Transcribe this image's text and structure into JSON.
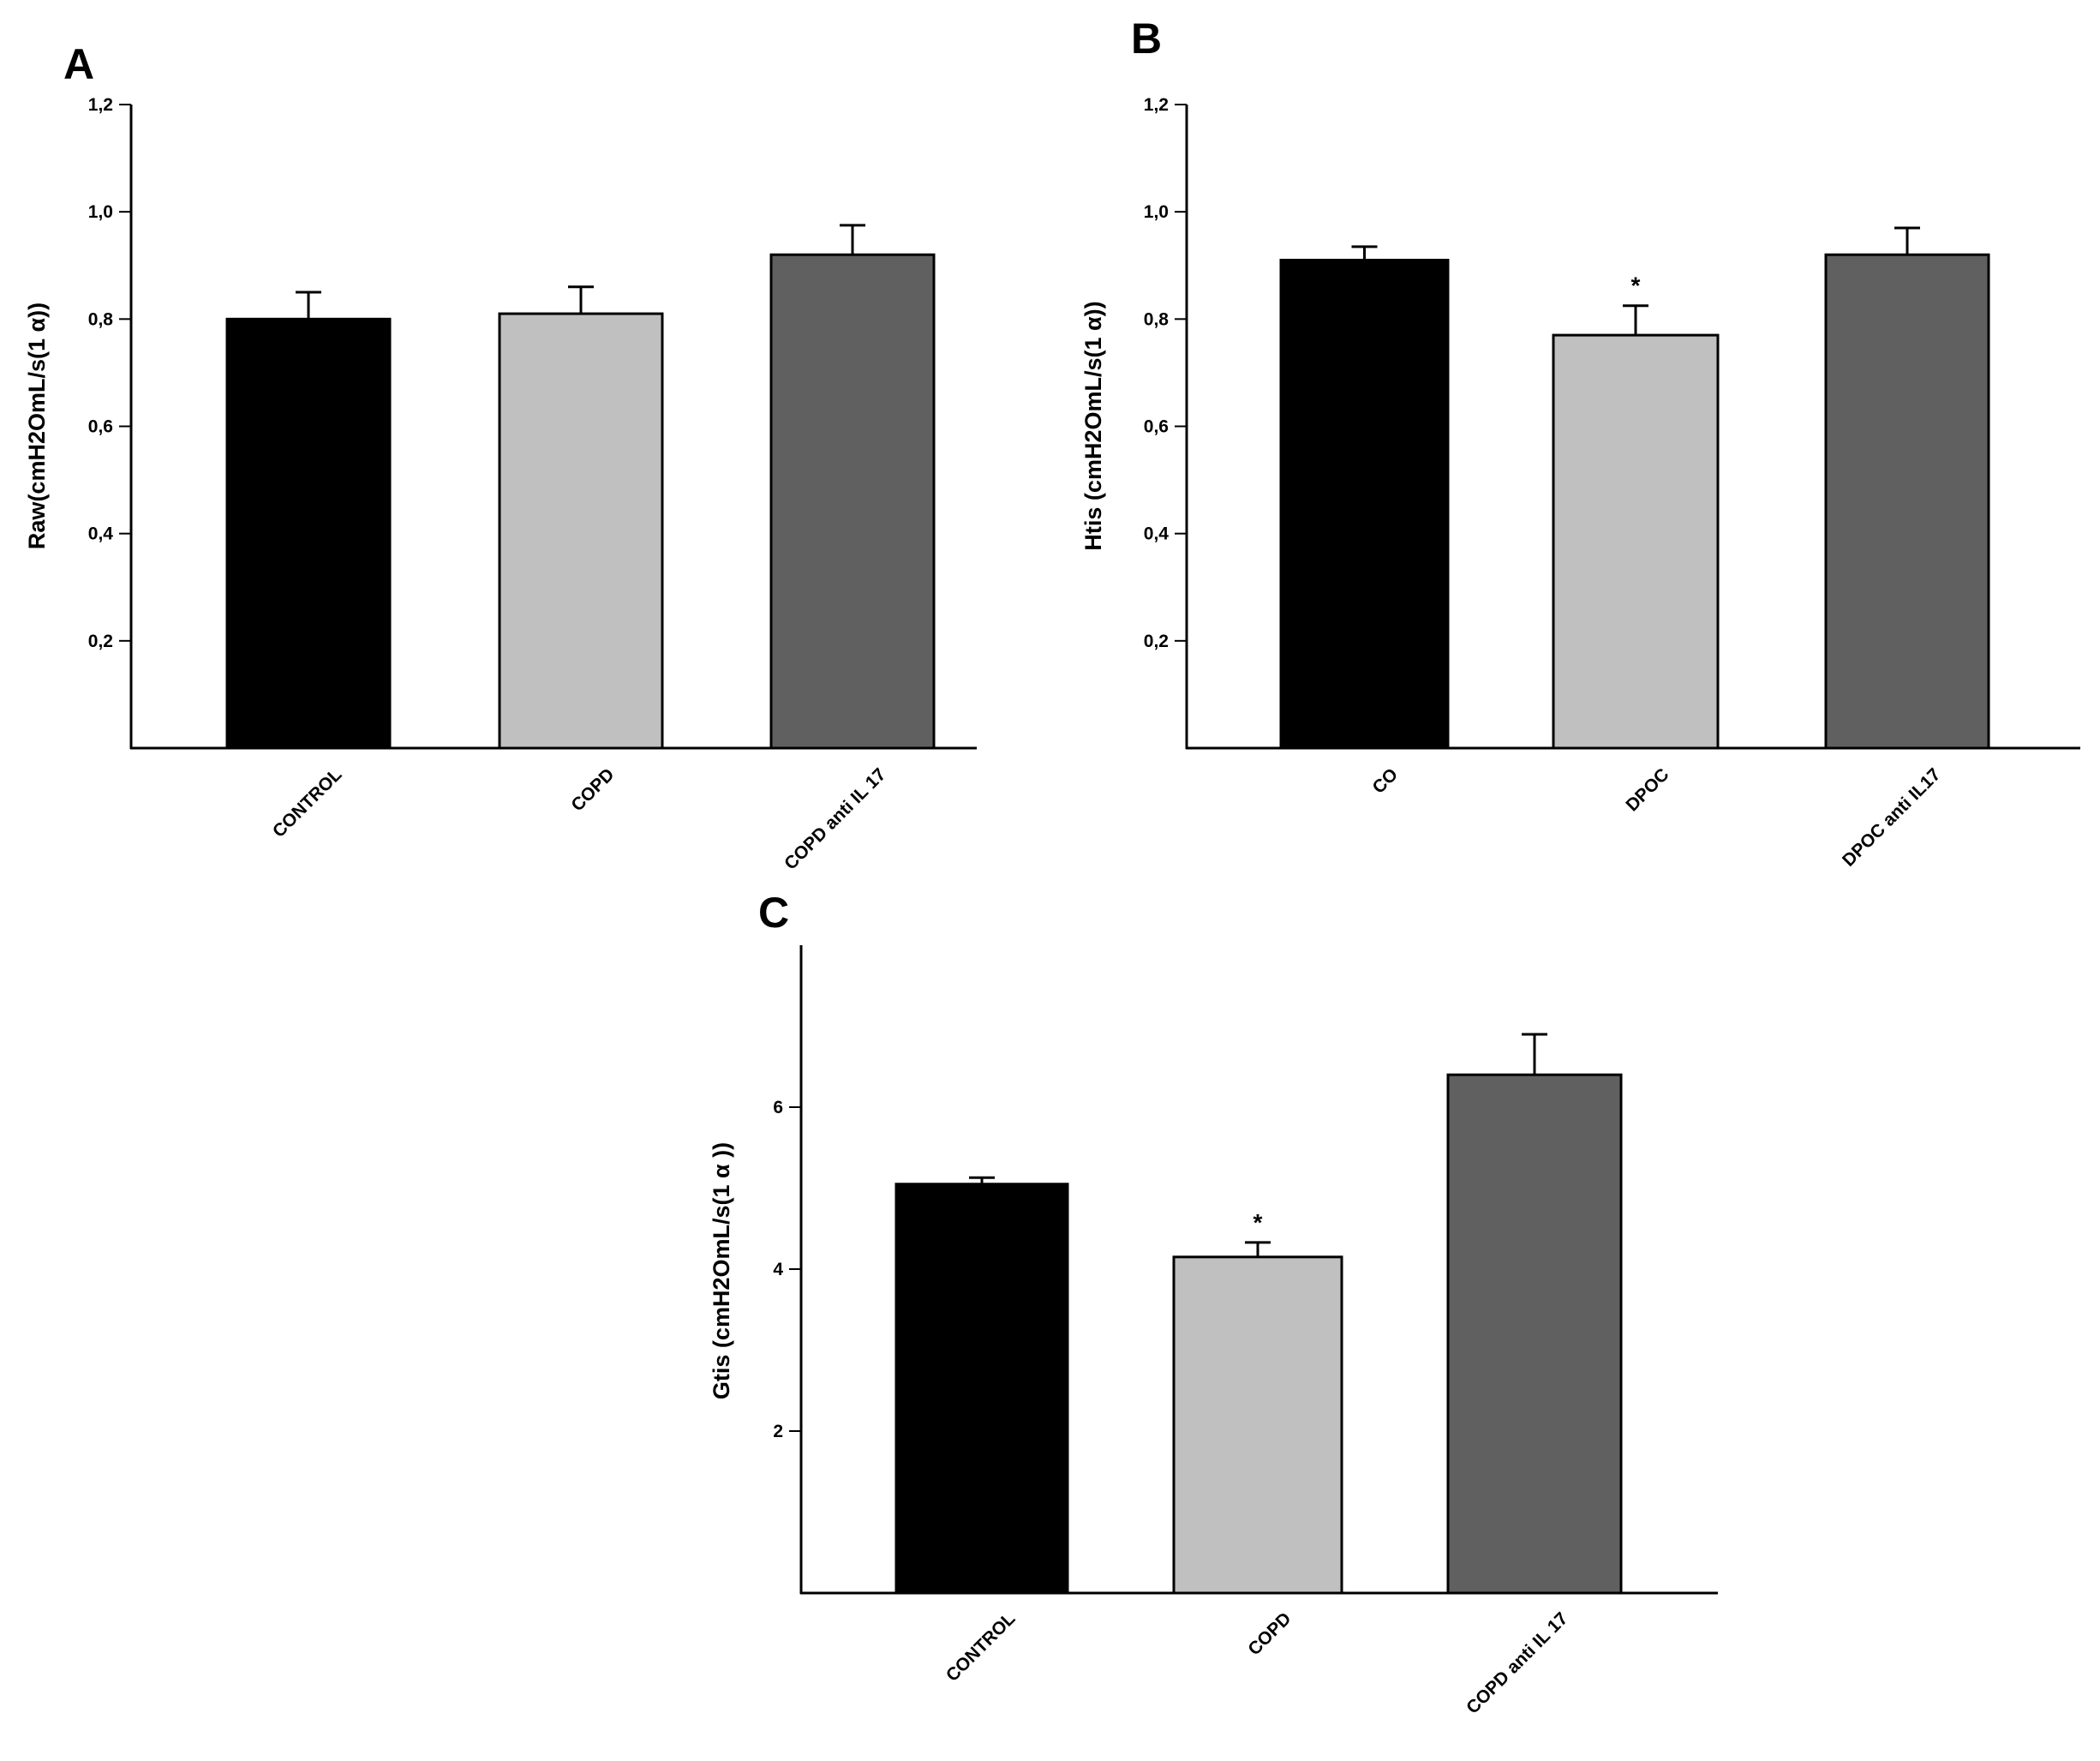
{
  "chart_data": [
    {
      "panel": "A",
      "type": "bar",
      "ylabel": "Raw(cmH2OmL/s(1 α))",
      "categories": [
        "CONTROL",
        "COPD",
        "COPD anti IL 17"
      ],
      "values": [
        0.8,
        0.81,
        0.92
      ],
      "errors": [
        0.05,
        0.05,
        0.055
      ],
      "significance": [
        "",
        "",
        ""
      ],
      "ylim": [
        0,
        1.2
      ],
      "yticks": [
        0.2,
        0.4,
        0.6,
        0.8,
        1.0,
        1.2
      ],
      "ytick_labels": [
        "0,2",
        "0,4",
        "0,6",
        "0,8",
        "1,0",
        "1,2"
      ],
      "colors": [
        "#000000",
        "#c0c0c0",
        "#606060"
      ]
    },
    {
      "panel": "B",
      "type": "bar",
      "ylabel": "Htis (cmH2OmL/s(1 α))",
      "categories": [
        "CO",
        "DPOC",
        "DPOC anti IL17"
      ],
      "values": [
        0.91,
        0.77,
        0.92
      ],
      "errors": [
        0.025,
        0.055,
        0.05
      ],
      "significance": [
        "",
        "*",
        ""
      ],
      "ylim": [
        0,
        1.2
      ],
      "yticks": [
        0.2,
        0.4,
        0.6,
        0.8,
        1.0,
        1.2
      ],
      "ytick_labels": [
        "0,2",
        "0,4",
        "0,6",
        "0,8",
        "1,0",
        "1,2"
      ],
      "colors": [
        "#000000",
        "#c0c0c0",
        "#606060"
      ]
    },
    {
      "panel": "C",
      "type": "bar",
      "ylabel": "Gtis (cmH2OmL/s(1 α ))",
      "categories": [
        "CONTROL",
        "COPD",
        "COPD anti IL 17"
      ],
      "values": [
        5.05,
        4.15,
        6.4
      ],
      "errors": [
        0.08,
        0.18,
        0.5
      ],
      "significance": [
        "",
        "*",
        ""
      ],
      "ylim": [
        0,
        8
      ],
      "yticks": [
        2,
        4,
        6
      ],
      "ytick_labels": [
        "2",
        "4",
        "6"
      ],
      "colors": [
        "#000000",
        "#c0c0c0",
        "#606060"
      ]
    }
  ]
}
